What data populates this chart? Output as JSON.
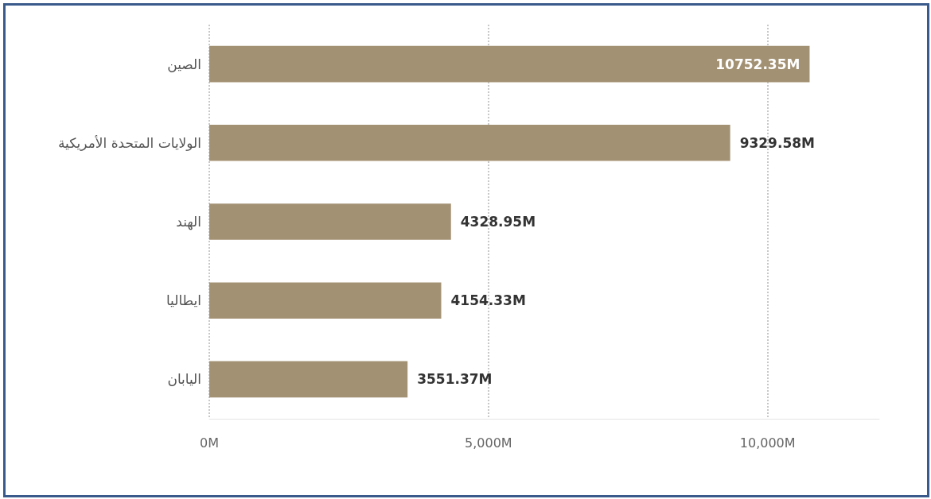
{
  "chart_data": {
    "type": "bar",
    "orientation": "horizontal",
    "categories": [
      "الصين",
      "الولايات المتحدة الأمريكية",
      "الهند",
      "ايطاليا",
      "اليابان"
    ],
    "values": [
      10752.35,
      9329.58,
      4328.95,
      4154.33,
      3551.37
    ],
    "value_labels": [
      "10752.35M",
      "9329.58M",
      "4328.95M",
      "4154.33M",
      "3551.37M"
    ],
    "color": "#a39173",
    "xlim": [
      0,
      12000
    ],
    "xticks": [
      {
        "value": 0,
        "label": "0M"
      },
      {
        "value": 5000,
        "label": "5,000M"
      },
      {
        "value": 10000,
        "label": "10,000M"
      }
    ],
    "grid": "x"
  }
}
